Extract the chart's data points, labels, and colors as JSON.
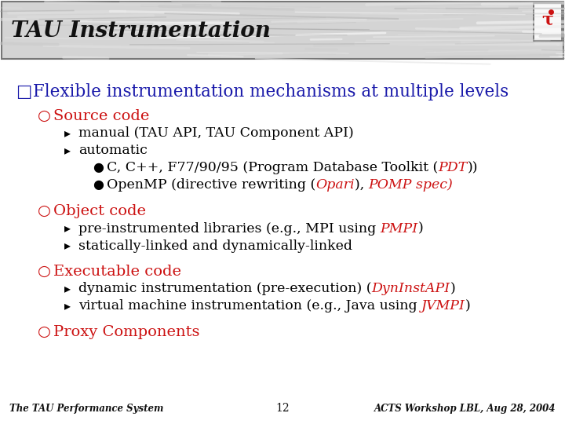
{
  "title": "TAU Instrumentation",
  "bg_color": "#ffffff",
  "header_bg": "#c8c8c8",
  "footer_left": "The TAU Performance System",
  "footer_center": "12",
  "footer_right": "ACTS Workshop LBL, Aug 28, 2004",
  "lines": [
    {
      "level": 0,
      "marker": "□",
      "marker_color": "#1a1aaa",
      "parts": [
        {
          "text": "Flexible instrumentation mechanisms at multiple levels",
          "color": "#1a1aaa",
          "italic": false
        }
      ],
      "size": 15.5,
      "extra_space_before": 8
    },
    {
      "level": 1,
      "marker": "○",
      "marker_color": "#cc1111",
      "parts": [
        {
          "text": "Source code",
          "color": "#cc1111",
          "italic": false
        }
      ],
      "size": 14,
      "extra_space_before": 4
    },
    {
      "level": 2,
      "marker": "▸",
      "marker_color": "#000000",
      "parts": [
        {
          "text": "manual (TAU API, TAU Component API)",
          "color": "#000000",
          "italic": false
        }
      ],
      "size": 12.5,
      "extra_space_before": 0
    },
    {
      "level": 2,
      "marker": "▸",
      "marker_color": "#000000",
      "parts": [
        {
          "text": "automatic",
          "color": "#000000",
          "italic": false
        }
      ],
      "size": 12.5,
      "extra_space_before": 0
    },
    {
      "level": 3,
      "marker": "●",
      "marker_color": "#000000",
      "parts": [
        {
          "text": "C, C++, F77/90/95 (Program Database Toolkit (",
          "color": "#000000",
          "italic": false
        },
        {
          "text": "PDT",
          "color": "#cc1111",
          "italic": true
        },
        {
          "text": "))",
          "color": "#000000",
          "italic": false
        }
      ],
      "size": 12.5,
      "extra_space_before": 0
    },
    {
      "level": 3,
      "marker": "●",
      "marker_color": "#000000",
      "parts": [
        {
          "text": "OpenMP (directive rewriting (",
          "color": "#000000",
          "italic": false
        },
        {
          "text": "Opari",
          "color": "#cc1111",
          "italic": true
        },
        {
          "text": "), ",
          "color": "#000000",
          "italic": false
        },
        {
          "text": "POMP spec)",
          "color": "#cc1111",
          "italic": true
        }
      ],
      "size": 12.5,
      "extra_space_before": 0
    },
    {
      "level": 1,
      "marker": "○",
      "marker_color": "#cc1111",
      "parts": [
        {
          "text": "Object code",
          "color": "#cc1111",
          "italic": false
        }
      ],
      "size": 14,
      "extra_space_before": 6
    },
    {
      "level": 2,
      "marker": "▸",
      "marker_color": "#000000",
      "parts": [
        {
          "text": "pre-instrumented libraries (e.g., MPI using ",
          "color": "#000000",
          "italic": false
        },
        {
          "text": "PMPI",
          "color": "#cc1111",
          "italic": true
        },
        {
          "text": ")",
          "color": "#000000",
          "italic": false
        }
      ],
      "size": 12.5,
      "extra_space_before": 0
    },
    {
      "level": 2,
      "marker": "▸",
      "marker_color": "#000000",
      "parts": [
        {
          "text": "statically-linked and dynamically-linked",
          "color": "#000000",
          "italic": false
        }
      ],
      "size": 12.5,
      "extra_space_before": 0
    },
    {
      "level": 1,
      "marker": "○",
      "marker_color": "#cc1111",
      "parts": [
        {
          "text": "Executable code",
          "color": "#cc1111",
          "italic": false
        }
      ],
      "size": 14,
      "extra_space_before": 6
    },
    {
      "level": 2,
      "marker": "▸",
      "marker_color": "#000000",
      "parts": [
        {
          "text": "dynamic instrumentation (pre-execution) (",
          "color": "#000000",
          "italic": false
        },
        {
          "text": "DynInstAPI",
          "color": "#cc1111",
          "italic": true
        },
        {
          "text": ")",
          "color": "#000000",
          "italic": false
        }
      ],
      "size": 12.5,
      "extra_space_before": 0
    },
    {
      "level": 2,
      "marker": "▸",
      "marker_color": "#000000",
      "parts": [
        {
          "text": "virtual machine instrumentation (e.g., Java using ",
          "color": "#000000",
          "italic": false
        },
        {
          "text": "JVMPI",
          "color": "#cc1111",
          "italic": true
        },
        {
          "text": ")",
          "color": "#000000",
          "italic": false
        }
      ],
      "size": 12.5,
      "extra_space_before": 0
    },
    {
      "level": 1,
      "marker": "○",
      "marker_color": "#cc1111",
      "parts": [
        {
          "text": "Proxy Components",
          "color": "#cc1111",
          "italic": false
        }
      ],
      "size": 14,
      "extra_space_before": 6
    }
  ]
}
